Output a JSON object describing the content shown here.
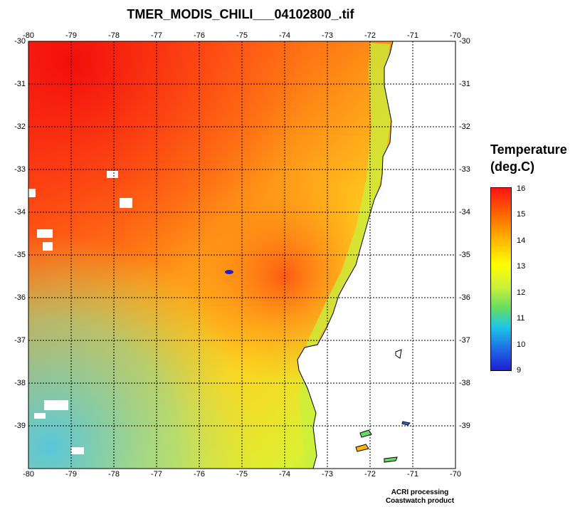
{
  "title": "TMER_MODIS_CHILI___04102800_.tif",
  "map": {
    "lon_ticks": [
      "-80",
      "-79",
      "-78",
      "-77",
      "-76",
      "-75",
      "-74",
      "-73",
      "-72",
      "-71",
      "-70"
    ],
    "lat_ticks": [
      "-30",
      "-31",
      "-32",
      "-33",
      "-34",
      "-35",
      "-36",
      "-37",
      "-38",
      "-39"
    ],
    "lon_range": [
      -80,
      -70
    ],
    "lat_range": [
      -30,
      -40
    ],
    "grid": "dotted",
    "coastline_color": "#000000",
    "land_color": "#ffffff"
  },
  "legend": {
    "title_line1": "Temperature",
    "title_line2": "(deg.C)",
    "ticks": [
      "16",
      "15",
      "14",
      "13",
      "12",
      "11",
      "10",
      "9"
    ],
    "range": [
      9,
      16
    ],
    "colors": [
      "#1e1ed2",
      "#1e6ee6",
      "#1ec8e6",
      "#64dc64",
      "#c8f03c",
      "#ffff00",
      "#ffb400",
      "#ff6400",
      "#ff1414"
    ]
  },
  "footer": {
    "line1": "ACRI processing",
    "line2": "Coastwatch product"
  }
}
